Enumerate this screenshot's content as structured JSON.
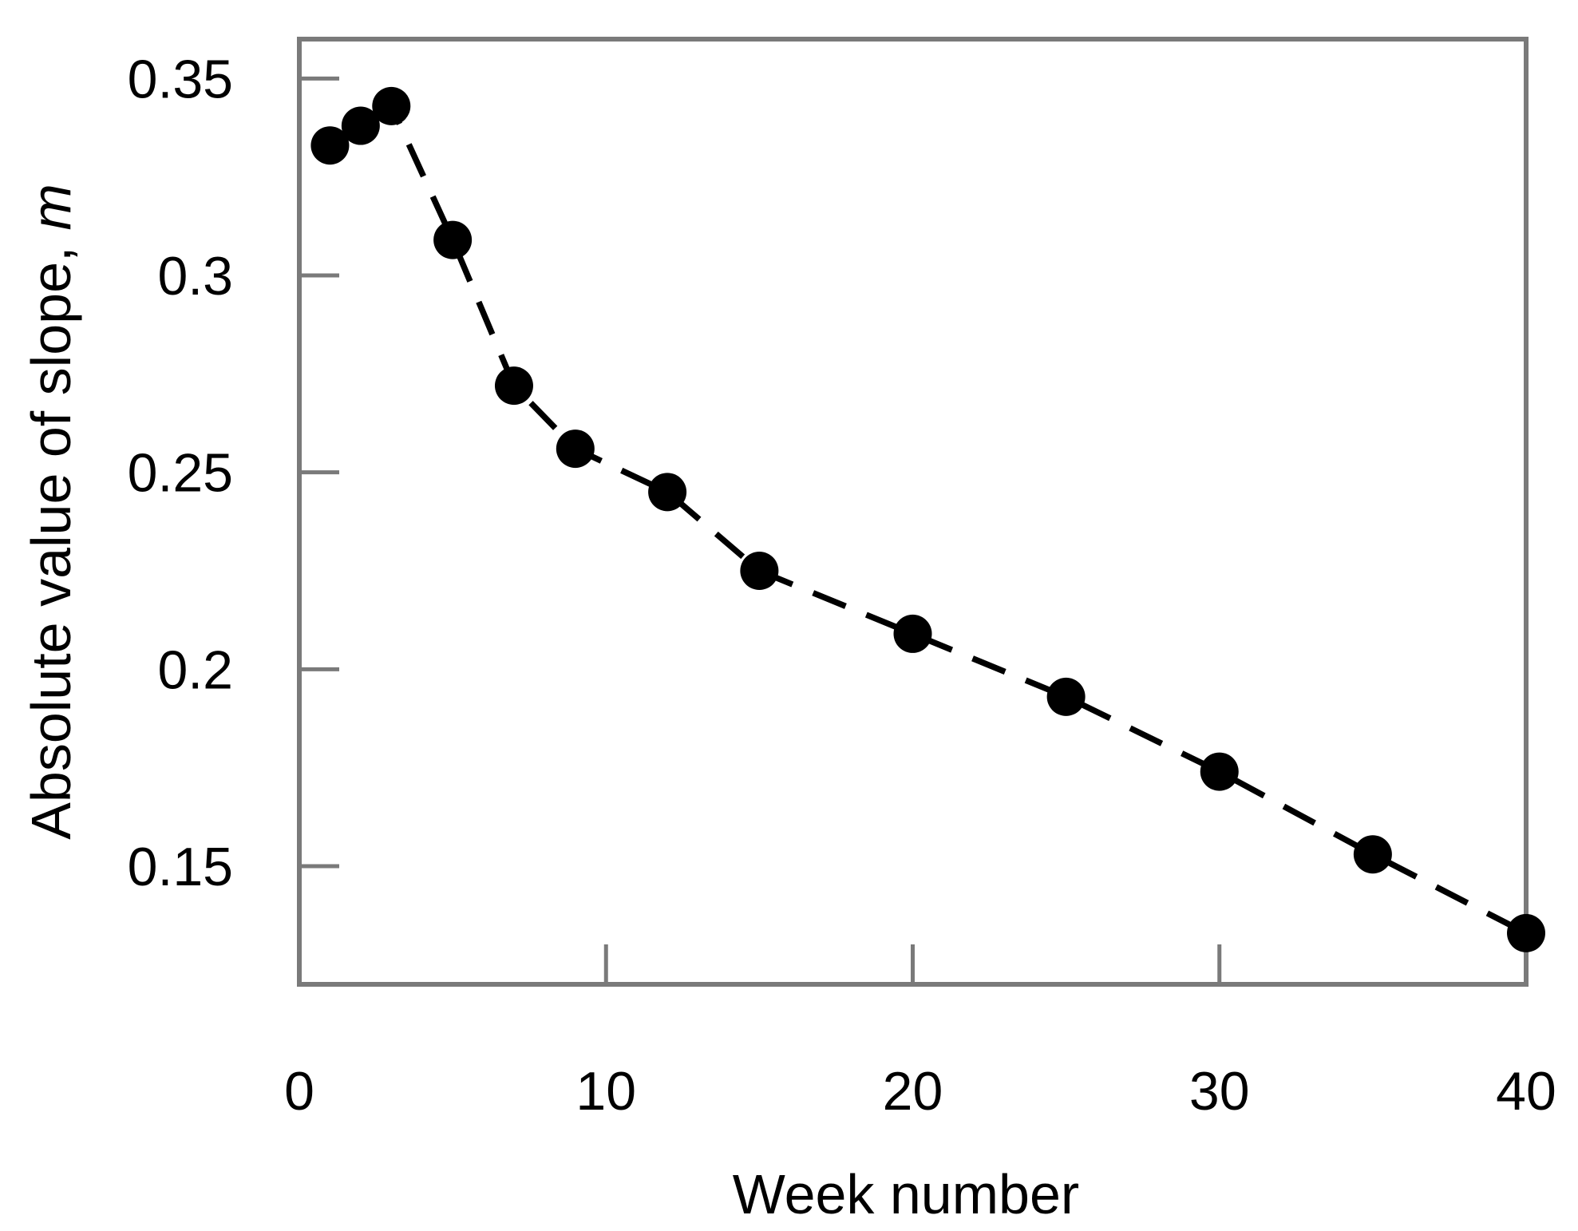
{
  "chart_data": {
    "type": "line",
    "title": "",
    "xlabel": "Week number",
    "ylabel": "Absolute value of slope, m",
    "ylabel_main": "Absolute value of slope,",
    "ylabel_symbol": "m",
    "series": [
      {
        "name": "absolute-value-of-slope",
        "x": [
          1,
          2,
          3,
          5,
          7,
          9,
          12,
          15,
          20,
          25,
          30,
          35,
          40
        ],
        "y": [
          0.333,
          0.338,
          0.343,
          0.309,
          0.272,
          0.256,
          0.245,
          0.225,
          0.209,
          0.193,
          0.174,
          0.153,
          0.133
        ]
      }
    ],
    "xlim": [
      0,
      40
    ],
    "ylim": [
      0.12,
      0.36
    ],
    "x_ticks": [
      0,
      10,
      20,
      30,
      40
    ],
    "x_tick_labels": [
      "0",
      "10",
      "20",
      "30",
      "40"
    ],
    "y_ticks": [
      0.35,
      0.3,
      0.25,
      0.2,
      0.15
    ],
    "y_tick_labels": [
      "0.35",
      "0.3",
      "0.25",
      "0.2",
      "0.15"
    ],
    "grid": false,
    "legend": "none",
    "line_style": "dashed",
    "marker": "filled-circle",
    "colors": {
      "marker": "#000000",
      "line": "#000000",
      "axis": "#7a7a7a",
      "text": "#000000",
      "background": "#ffffff"
    }
  }
}
